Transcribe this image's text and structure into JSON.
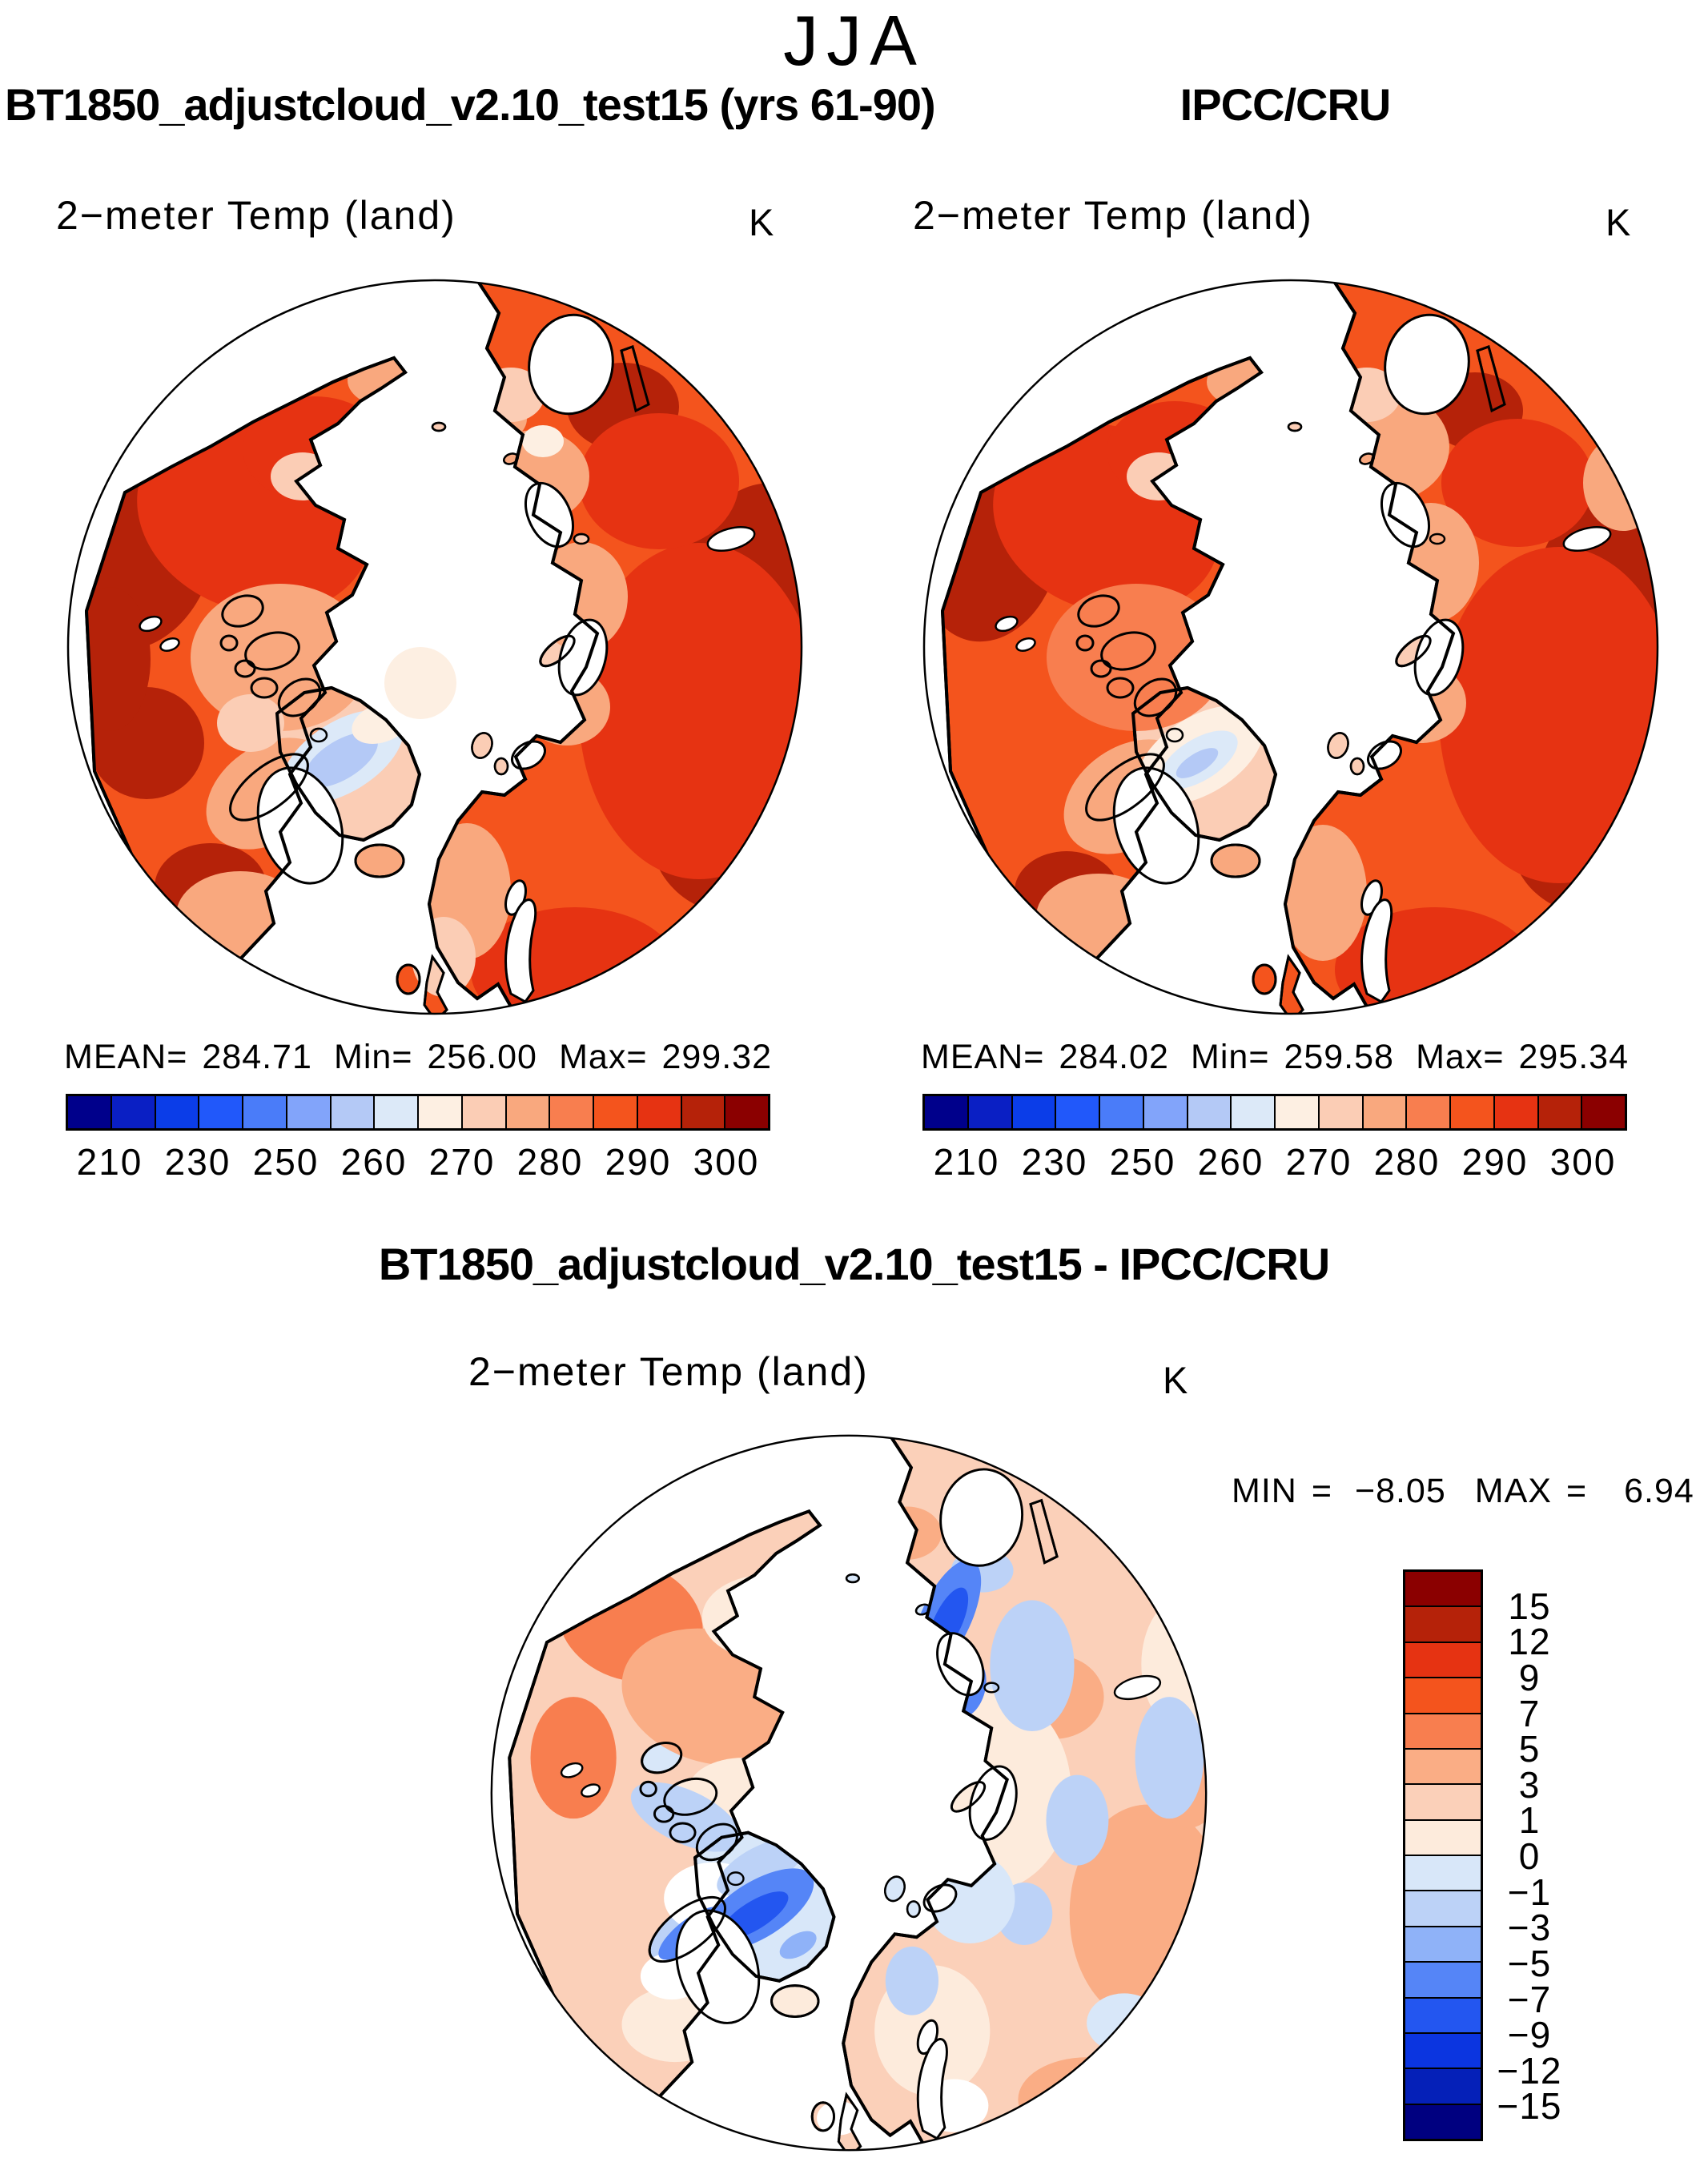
{
  "season_title": "JJA",
  "panels": {
    "model": {
      "title": "BT1850_adjustcloud_v2.10_test15 (yrs 61-90)",
      "subtitle": "2−meter Temp (land)",
      "units": "K",
      "stats": {
        "mean_label": "MEAN=",
        "mean": "284.71",
        "min_label": "Min=",
        "min": "256.00",
        "max_label": "Max=",
        "max": "299.32"
      },
      "colorbar_ticks": [
        "210",
        "230",
        "250",
        "260",
        "270",
        "280",
        "290",
        "300"
      ]
    },
    "obs": {
      "title": "IPCC/CRU",
      "subtitle": "2−meter Temp (land)",
      "units": "K",
      "stats": {
        "mean_label": "MEAN=",
        "mean": "284.02",
        "min_label": "Min=",
        "min": "259.58",
        "max_label": "Max=",
        "max": "295.34"
      },
      "colorbar_ticks": [
        "210",
        "230",
        "250",
        "260",
        "270",
        "280",
        "290",
        "300"
      ]
    },
    "diff": {
      "title": "BT1850_adjustcloud_v2.10_test15 - IPCC/CRU",
      "subtitle": "2−meter Temp (land)",
      "units": "K",
      "stats": {
        "min_label": "MIN",
        "eq": "=",
        "min": "−8.05",
        "max_label": "MAX",
        "max": "6.94"
      },
      "colorbar_ticks": [
        "15",
        "12",
        "9",
        "7",
        "5",
        "3",
        "1",
        "0",
        "−1",
        "−3",
        "−5",
        "−7",
        "−9",
        "−12",
        "−15"
      ]
    }
  },
  "palettes": {
    "temp": [
      "#00008B",
      "#0A1FC4",
      "#0B3DE8",
      "#2158FA",
      "#4A7CF9",
      "#82A4FA",
      "#B4C9F6",
      "#DCE9F8",
      "#FDEFE2",
      "#FBCDB5",
      "#F9A87E",
      "#F87E4F",
      "#F4541D",
      "#E63312",
      "#B52209",
      "#8B0000"
    ],
    "diff": [
      "#8B0000",
      "#B52209",
      "#E63312",
      "#F4541D",
      "#F87E4F",
      "#FAAD85",
      "#FBD0B9",
      "#FDEBDC",
      "#D8E7F9",
      "#BCD2F7",
      "#8FB2F8",
      "#5585F7",
      "#2356F0",
      "#0B35E0",
      "#0520B8",
      "#000080"
    ]
  },
  "chart_data": {
    "type": "heatmap",
    "subtype": "north-polar-stereographic temperature maps",
    "season": "JJA",
    "variable": "2-meter Temp (land)",
    "units": "K",
    "panels": [
      {
        "name": "BT1850_adjustcloud_v2.10_test15 (yrs 61-90)",
        "role": "model",
        "mean": 284.71,
        "min": 256.0,
        "max": 299.32,
        "colorbar": {
          "orientation": "horizontal",
          "n_segments": 16,
          "labeled_levels": [
            210,
            230,
            250,
            260,
            270,
            280,
            290,
            300
          ],
          "palette": "temp"
        },
        "field_notes": "Land areas mostly 280-300 K (oranges/reds); Greenland interior 250-265 K (light blues); Arctic Ocean masked white; pale circle artifact at pole."
      },
      {
        "name": "IPCC/CRU",
        "role": "observations",
        "mean": 284.02,
        "min": 259.58,
        "max": 295.34,
        "colorbar": {
          "orientation": "horizontal",
          "n_segments": 16,
          "labeled_levels": [
            210,
            230,
            250,
            260,
            270,
            280,
            290,
            300
          ],
          "palette": "temp"
        },
        "field_notes": "Similar warm land pattern; Greenland cold interior smaller and lighter; Arctic Ocean masked white."
      },
      {
        "name": "BT1850_adjustcloud_v2.10_test15 - IPCC/CRU",
        "role": "difference",
        "min": -8.05,
        "max": 6.94,
        "colorbar": {
          "orientation": "vertical",
          "n_segments": 16,
          "labeled_levels": [
            15,
            12,
            9,
            7,
            5,
            3,
            1,
            0,
            -1,
            -3,
            -5,
            -7,
            -9,
            -12,
            -15
          ],
          "palette": "diff"
        },
        "field_notes": "Mostly +1 to +5 K (pale oranges) over land; Alaska/NW Canada up to +7 K; cold biases of -3 to -9 K (blues) over Greenland interior, Baffin region and east Siberian coast."
      }
    ]
  }
}
